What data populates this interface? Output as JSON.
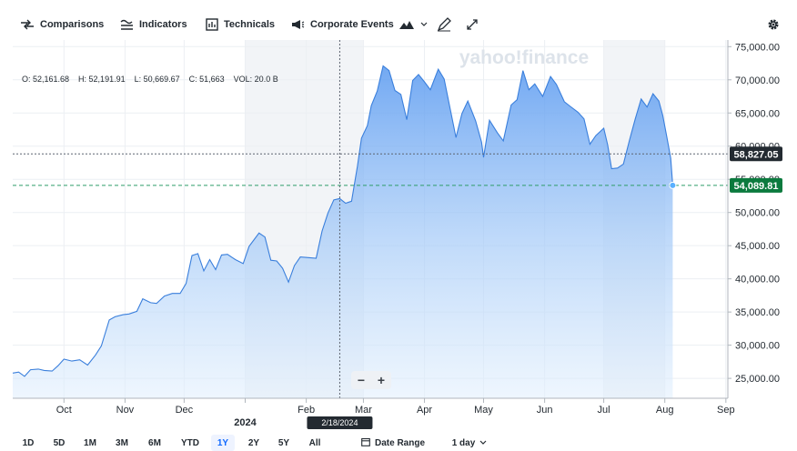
{
  "toolbar": {
    "comparisons": "Comparisons",
    "indicators": "Indicators",
    "technicals": "Technicals",
    "corporate_events": "Corporate Events"
  },
  "ohlc": {
    "open": "O: 52,161.68",
    "high": "H: 52,191.91",
    "low": "L: 50,669.67",
    "close": "C: 51,663",
    "volume": "VOL: 20.0 B"
  },
  "watermark": "yahoo!finance",
  "zoom": {
    "minus": "−",
    "plus": "+"
  },
  "range_buttons": [
    "1D",
    "5D",
    "1M",
    "3M",
    "6M",
    "YTD",
    "1Y",
    "2Y",
    "5Y",
    "All"
  ],
  "range_active": "1Y",
  "date_range_label": "Date Range",
  "interval_label": "1 day",
  "colors": {
    "line": "#3a7fdc",
    "accent": "#0f69ff",
    "current_badge": "#0b7a3e",
    "crosshair_badge": "#232a31"
  },
  "chart_data": {
    "type": "area",
    "ylim": [
      22000,
      76000
    ],
    "y_ticks": [
      25000,
      30000,
      35000,
      40000,
      45000,
      50000,
      55000,
      60000,
      65000,
      70000,
      75000
    ],
    "y_tick_labels": [
      "25,000.00",
      "30,000.00",
      "35,000.00",
      "40,000.00",
      "45,000.00",
      "50,000.00",
      "55,000.00",
      "60,000.00",
      "65,000.00",
      "70,000.00",
      "75,000.00"
    ],
    "x_ticks": [
      {
        "label": "Oct",
        "date": "2023-10-01"
      },
      {
        "label": "Nov",
        "date": "2023-11-01"
      },
      {
        "label": "Dec",
        "date": "2023-12-01"
      },
      {
        "label": "2024",
        "date": "2024-01-01"
      },
      {
        "label": "Feb",
        "date": "2024-02-01"
      },
      {
        "label": "Mar",
        "date": "2024-03-01"
      },
      {
        "label": "Apr",
        "date": "2024-04-01"
      },
      {
        "label": "May",
        "date": "2024-05-01"
      },
      {
        "label": "Jun",
        "date": "2024-06-01"
      },
      {
        "label": "Jul",
        "date": "2024-07-01"
      },
      {
        "label": "Aug",
        "date": "2024-08-01"
      },
      {
        "label": "Sep",
        "date": "2024-09-01"
      }
    ],
    "shaded_ranges": [
      [
        "2024-01-01",
        "2024-03-01"
      ],
      [
        "2024-07-01",
        "2024-08-01"
      ]
    ],
    "crosshair": {
      "date": "2024-02-18",
      "date_label": "2/18/2024",
      "price": 58827.05,
      "price_label": "58,827.05"
    },
    "current": {
      "price": 54089.81,
      "price_label": "54,089.81"
    },
    "grid": true,
    "series": [
      {
        "points": [
          [
            "2023-09-05",
            25800
          ],
          [
            "2023-09-08",
            25950
          ],
          [
            "2023-09-11",
            25300
          ],
          [
            "2023-09-14",
            26300
          ],
          [
            "2023-09-18",
            26400
          ],
          [
            "2023-09-21",
            26200
          ],
          [
            "2023-09-25",
            26100
          ],
          [
            "2023-09-28",
            26900
          ],
          [
            "2023-10-01",
            27900
          ],
          [
            "2023-10-05",
            27600
          ],
          [
            "2023-10-09",
            27800
          ],
          [
            "2023-10-13",
            27000
          ],
          [
            "2023-10-17",
            28500
          ],
          [
            "2023-10-20",
            29900
          ],
          [
            "2023-10-24",
            33800
          ],
          [
            "2023-10-27",
            34300
          ],
          [
            "2023-10-31",
            34600
          ],
          [
            "2023-11-03",
            34700
          ],
          [
            "2023-11-07",
            35100
          ],
          [
            "2023-11-10",
            37000
          ],
          [
            "2023-11-14",
            36400
          ],
          [
            "2023-11-17",
            36300
          ],
          [
            "2023-11-21",
            37400
          ],
          [
            "2023-11-25",
            37800
          ],
          [
            "2023-11-29",
            37800
          ],
          [
            "2023-12-02",
            39300
          ],
          [
            "2023-12-05",
            43500
          ],
          [
            "2023-12-08",
            43800
          ],
          [
            "2023-12-11",
            41200
          ],
          [
            "2023-12-14",
            42900
          ],
          [
            "2023-12-17",
            41400
          ],
          [
            "2023-12-20",
            43600
          ],
          [
            "2023-12-23",
            43700
          ],
          [
            "2023-12-27",
            42900
          ],
          [
            "2023-12-31",
            42300
          ],
          [
            "2024-01-03",
            44900
          ],
          [
            "2024-01-08",
            46900
          ],
          [
            "2024-01-11",
            46300
          ],
          [
            "2024-01-14",
            42800
          ],
          [
            "2024-01-17",
            42700
          ],
          [
            "2024-01-20",
            41600
          ],
          [
            "2024-01-23",
            39500
          ],
          [
            "2024-01-26",
            42000
          ],
          [
            "2024-01-29",
            43300
          ],
          [
            "2024-02-02",
            43200
          ],
          [
            "2024-02-06",
            43100
          ],
          [
            "2024-02-09",
            47200
          ],
          [
            "2024-02-12",
            49900
          ],
          [
            "2024-02-15",
            51900
          ],
          [
            "2024-02-18",
            52100
          ],
          [
            "2024-02-21",
            51400
          ],
          [
            "2024-02-24",
            51700
          ],
          [
            "2024-02-27",
            57000
          ],
          [
            "2024-02-29",
            61200
          ],
          [
            "2024-03-03",
            63100
          ],
          [
            "2024-03-05",
            66100
          ],
          [
            "2024-03-08",
            68300
          ],
          [
            "2024-03-11",
            72100
          ],
          [
            "2024-03-14",
            71400
          ],
          [
            "2024-03-17",
            68400
          ],
          [
            "2024-03-20",
            67800
          ],
          [
            "2024-03-23",
            64000
          ],
          [
            "2024-03-26",
            69900
          ],
          [
            "2024-03-29",
            70800
          ],
          [
            "2024-04-01",
            69700
          ],
          [
            "2024-04-04",
            68500
          ],
          [
            "2024-04-08",
            71600
          ],
          [
            "2024-04-11",
            70100
          ],
          [
            "2024-04-14",
            65700
          ],
          [
            "2024-04-17",
            61300
          ],
          [
            "2024-04-20",
            64900
          ],
          [
            "2024-04-23",
            66800
          ],
          [
            "2024-04-27",
            63800
          ],
          [
            "2024-04-30",
            60600
          ],
          [
            "2024-05-01",
            58300
          ],
          [
            "2024-05-04",
            63900
          ],
          [
            "2024-05-08",
            62000
          ],
          [
            "2024-05-11",
            60800
          ],
          [
            "2024-05-15",
            66200
          ],
          [
            "2024-05-18",
            67000
          ],
          [
            "2024-05-21",
            71400
          ],
          [
            "2024-05-24",
            68500
          ],
          [
            "2024-05-27",
            69400
          ],
          [
            "2024-05-31",
            67500
          ],
          [
            "2024-06-04",
            70500
          ],
          [
            "2024-06-07",
            69300
          ],
          [
            "2024-06-11",
            66700
          ],
          [
            "2024-06-14",
            66000
          ],
          [
            "2024-06-18",
            65100
          ],
          [
            "2024-06-21",
            64100
          ],
          [
            "2024-06-24",
            60300
          ],
          [
            "2024-06-27",
            61600
          ],
          [
            "2024-07-01",
            62700
          ],
          [
            "2024-07-03",
            60200
          ],
          [
            "2024-07-05",
            56600
          ],
          [
            "2024-07-08",
            56700
          ],
          [
            "2024-07-11",
            57300
          ],
          [
            "2024-07-14",
            60800
          ],
          [
            "2024-07-17",
            64100
          ],
          [
            "2024-07-20",
            67100
          ],
          [
            "2024-07-23",
            65900
          ],
          [
            "2024-07-26",
            67900
          ],
          [
            "2024-07-29",
            66800
          ],
          [
            "2024-07-31",
            64600
          ],
          [
            "2024-08-02",
            61400
          ],
          [
            "2024-08-04",
            58200
          ],
          [
            "2024-08-05",
            54089.81
          ]
        ]
      }
    ]
  }
}
